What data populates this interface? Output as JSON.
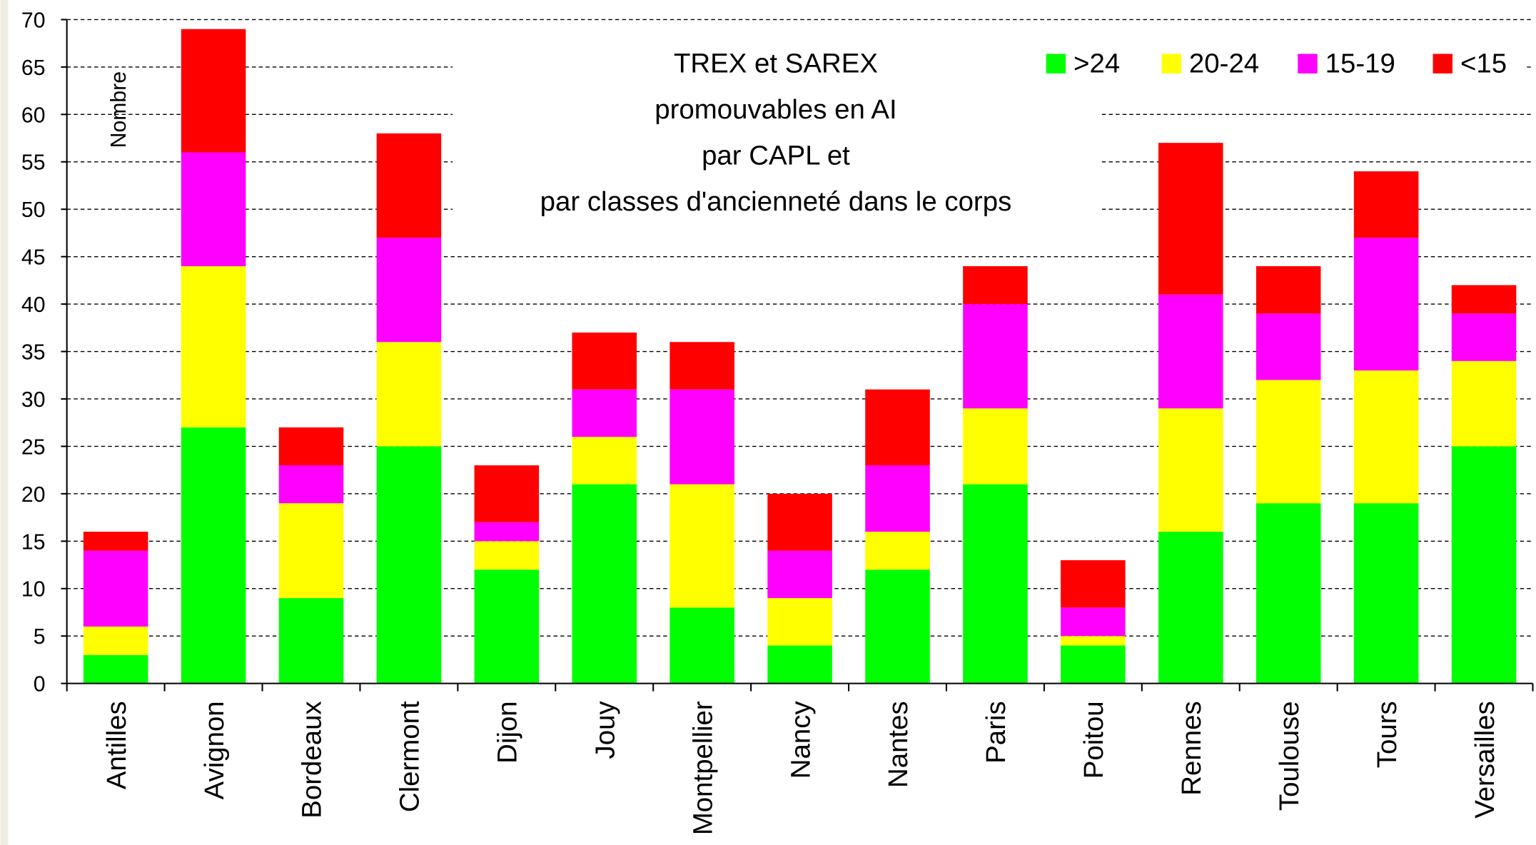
{
  "chart_data": {
    "type": "stacked_bar",
    "title": [
      "TREX et SAREX",
      "promouvables en AI",
      "par CAPL et",
      "par classes d'ancienneté dans le corps"
    ],
    "y_label": "Nombre",
    "categories": [
      "Antilles",
      "Avignon",
      "Bordeaux",
      "Clermont",
      "Dijon",
      "Jouy",
      "Montpellier",
      "Nancy",
      "Nantes",
      "Paris",
      "Poitou",
      "Rennes",
      "Toulouse",
      "Tours",
      "Versailles"
    ],
    "series": [
      {
        "name": ">24",
        "color": "#00ff00",
        "values": [
          3,
          27,
          9,
          25,
          12,
          21,
          8,
          4,
          12,
          21,
          4,
          16,
          19,
          19,
          25
        ]
      },
      {
        "name": "20-24",
        "color": "#ffff00",
        "values": [
          3,
          17,
          10,
          11,
          3,
          5,
          13,
          5,
          4,
          8,
          1,
          13,
          13,
          14,
          9
        ]
      },
      {
        "name": "15-19",
        "color": "#ff00ff",
        "values": [
          8,
          12,
          4,
          11,
          2,
          5,
          10,
          5,
          7,
          11,
          3,
          12,
          7,
          14,
          5
        ]
      },
      {
        "name": "<15",
        "color": "#ff0000",
        "values": [
          2,
          13,
          4,
          11,
          6,
          6,
          5,
          6,
          8,
          4,
          5,
          16,
          5,
          7,
          3
        ]
      }
    ],
    "ylim": [
      0,
      70
    ],
    "yticks": [
      0,
      5,
      10,
      15,
      20,
      25,
      30,
      35,
      40,
      45,
      50,
      55,
      60,
      65,
      70
    ],
    "grid": true,
    "legend": "top-right"
  }
}
